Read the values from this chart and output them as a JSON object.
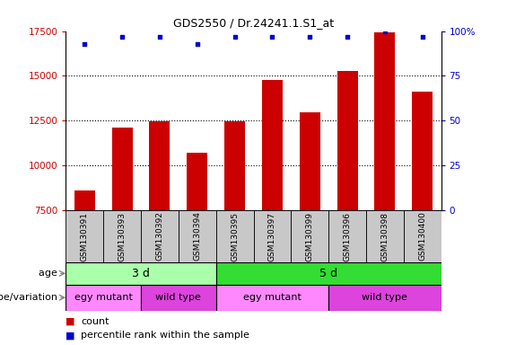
{
  "title": "GDS2550 / Dr.24241.1.S1_at",
  "samples": [
    "GSM130391",
    "GSM130393",
    "GSM130392",
    "GSM130394",
    "GSM130395",
    "GSM130397",
    "GSM130399",
    "GSM130396",
    "GSM130398",
    "GSM130400"
  ],
  "counts": [
    8600,
    12100,
    12450,
    10700,
    12450,
    14750,
    12950,
    15250,
    17450,
    14100
  ],
  "percentile_ranks": [
    93,
    97,
    97,
    93,
    97,
    97,
    97,
    97,
    100,
    97
  ],
  "ylim_left": [
    7500,
    17500
  ],
  "ylim_right": [
    0,
    100
  ],
  "yticks_left": [
    7500,
    10000,
    12500,
    15000,
    17500
  ],
  "yticks_right": [
    0,
    25,
    50,
    75,
    100
  ],
  "bar_color": "#cc0000",
  "dot_color": "#0000cc",
  "age_labels": [
    {
      "text": "3 d",
      "start": 0,
      "end": 4,
      "color": "#aaffaa"
    },
    {
      "text": "5 d",
      "start": 4,
      "end": 10,
      "color": "#33dd33"
    }
  ],
  "genotype_labels": [
    {
      "text": "egy mutant",
      "start": 0,
      "end": 2,
      "color": "#ff88ff"
    },
    {
      "text": "wild type",
      "start": 2,
      "end": 4,
      "color": "#dd44dd"
    },
    {
      "text": "egy mutant",
      "start": 4,
      "end": 7,
      "color": "#ff88ff"
    },
    {
      "text": "wild type",
      "start": 7,
      "end": 10,
      "color": "#dd44dd"
    }
  ],
  "label_age": "age",
  "label_genotype": "genotype/variation",
  "legend_count_color": "#cc0000",
  "legend_pct_color": "#0000cc",
  "legend_count": "count",
  "legend_pct": "percentile rank within the sample",
  "sample_box_color": "#c8c8c8",
  "grid_yticks": [
    10000,
    12500,
    15000
  ]
}
